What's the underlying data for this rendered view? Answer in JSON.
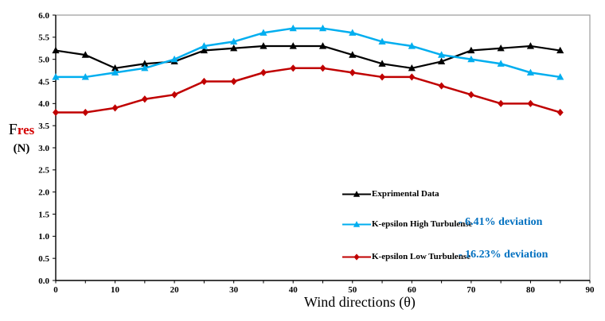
{
  "chart_data": {
    "type": "line",
    "title": "",
    "xlabel": "Wind directions (θ)",
    "ylabel_parts": {
      "f": "F",
      "res": "res",
      "unit": "(N)"
    },
    "xlim": [
      0,
      90
    ],
    "ylim": [
      0,
      6
    ],
    "xtick_step": 5,
    "xlabel_step": 10,
    "ytick_step": 0.5,
    "grid": false,
    "legend_position": "inside-lower-right",
    "axis_color": "#000000",
    "border_color": "#9e9e9e",
    "deviation_color": "#0070c0",
    "x": [
      0,
      5,
      10,
      15,
      20,
      25,
      30,
      35,
      40,
      45,
      50,
      55,
      60,
      65,
      70,
      75,
      80,
      85
    ],
    "series": [
      {
        "name": "Exprimental Data",
        "color": "#000000",
        "marker": "triangle",
        "deviation": "",
        "values": [
          5.2,
          5.1,
          4.8,
          4.9,
          4.95,
          5.2,
          5.25,
          5.3,
          5.3,
          5.3,
          5.1,
          4.9,
          4.8,
          4.95,
          5.2,
          5.25,
          5.3,
          5.2
        ]
      },
      {
        "name": "K-epsilon High Turbulense",
        "color": "#00aeef",
        "marker": "triangle",
        "deviation": "- 6.41% deviation",
        "values": [
          4.6,
          4.6,
          4.7,
          4.8,
          5.0,
          5.3,
          5.4,
          5.6,
          5.7,
          5.7,
          5.6,
          5.4,
          5.3,
          5.1,
          5.0,
          4.9,
          4.7,
          4.6
        ]
      },
      {
        "name": "K-epsilon Low Turbulense",
        "color": "#c00000",
        "marker": "diamond",
        "deviation": "- 16.23% deviation",
        "values": [
          3.8,
          3.8,
          3.9,
          4.1,
          4.2,
          4.5,
          4.5,
          4.7,
          4.8,
          4.8,
          4.7,
          4.6,
          4.6,
          4.4,
          4.2,
          4.0,
          4.0,
          3.8
        ]
      }
    ]
  }
}
